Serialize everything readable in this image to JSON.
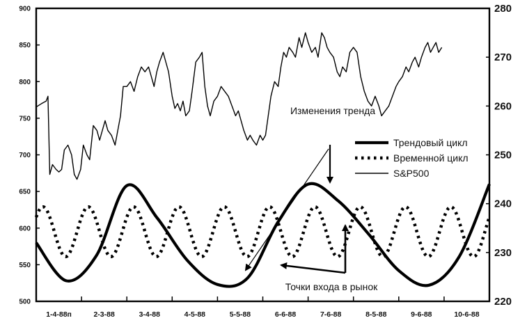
{
  "chart_data": {
    "type": "line",
    "x_labels": [
      "1-4-88п",
      "2-3-88",
      "3-4-88",
      "4-5-88",
      "5-5-88",
      "6-6-88",
      "7-6-88",
      "8-5-88",
      "9-6-88",
      "10-6-88"
    ],
    "left_axis": {
      "ticks": [
        "500",
        "550",
        "600",
        "650",
        "700",
        "750",
        "800",
        "850",
        "900"
      ],
      "ylim": [
        500,
        900
      ]
    },
    "right_axis": {
      "ticks": [
        "220",
        "230",
        "240",
        "250",
        "260",
        "270",
        "280"
      ],
      "ylim": [
        220,
        280
      ]
    },
    "legend": [
      {
        "label": "Трендовый цикл",
        "style": "thick-solid"
      },
      {
        "label": "Временной цикл",
        "style": "dotted"
      },
      {
        "label": "S&P500",
        "style": "thin-solid"
      }
    ],
    "annotations": {
      "trend_change": "Изменения тренда",
      "entry_points": "Точки входа в рынок"
    },
    "series": [
      {
        "name": "Трендовый цикл",
        "axis": "left",
        "sampled_per_month": [
          580,
          528,
          563,
          658,
          614,
          556,
          523,
          532,
          608,
          660,
          637,
          592,
          542,
          522,
          561,
          660
        ]
      },
      {
        "name": "Временной цикл",
        "axis": "left",
        "cycle_center": 595,
        "cycle_amplitude": 34,
        "cycle_length_months": 1.0
      },
      {
        "name": "S&P500",
        "axis": "right",
        "points": [
          [
            0.0,
            259.8
          ],
          [
            0.12,
            260.5
          ],
          [
            0.22,
            261
          ],
          [
            0.26,
            262
          ],
          [
            0.3,
            246
          ],
          [
            0.36,
            248
          ],
          [
            0.44,
            247
          ],
          [
            0.5,
            246.5
          ],
          [
            0.56,
            247
          ],
          [
            0.62,
            251
          ],
          [
            0.7,
            252
          ],
          [
            0.78,
            250
          ],
          [
            0.84,
            246
          ],
          [
            0.9,
            245
          ],
          [
            0.98,
            247
          ],
          [
            1.04,
            252
          ],
          [
            1.12,
            250
          ],
          [
            1.18,
            249
          ],
          [
            1.26,
            256
          ],
          [
            1.34,
            255
          ],
          [
            1.4,
            253
          ],
          [
            1.46,
            255
          ],
          [
            1.52,
            257
          ],
          [
            1.58,
            255
          ],
          [
            1.66,
            254
          ],
          [
            1.74,
            252
          ],
          [
            1.8,
            255
          ],
          [
            1.86,
            258
          ],
          [
            1.92,
            264
          ],
          [
            2.0,
            264
          ],
          [
            2.08,
            265
          ],
          [
            2.16,
            263
          ],
          [
            2.24,
            266
          ],
          [
            2.32,
            268
          ],
          [
            2.4,
            267
          ],
          [
            2.48,
            268
          ],
          [
            2.54,
            266
          ],
          [
            2.6,
            264
          ],
          [
            2.66,
            267
          ],
          [
            2.72,
            269
          ],
          [
            2.8,
            271
          ],
          [
            2.86,
            269
          ],
          [
            2.92,
            267
          ],
          [
            3.0,
            262
          ],
          [
            3.06,
            259.5
          ],
          [
            3.12,
            260.5
          ],
          [
            3.18,
            259
          ],
          [
            3.24,
            261
          ],
          [
            3.3,
            258
          ],
          [
            3.38,
            259
          ],
          [
            3.44,
            263
          ],
          [
            3.52,
            269
          ],
          [
            3.6,
            270
          ],
          [
            3.66,
            271
          ],
          [
            3.72,
            264
          ],
          [
            3.78,
            260
          ],
          [
            3.84,
            258
          ],
          [
            3.92,
            261
          ],
          [
            4.0,
            262
          ],
          [
            4.08,
            264
          ],
          [
            4.16,
            263
          ],
          [
            4.24,
            262
          ],
          [
            4.32,
            260
          ],
          [
            4.4,
            258
          ],
          [
            4.46,
            259
          ],
          [
            4.52,
            257
          ],
          [
            4.58,
            255
          ],
          [
            4.66,
            253
          ],
          [
            4.72,
            254
          ],
          [
            4.78,
            253
          ],
          [
            4.86,
            252
          ],
          [
            4.94,
            254
          ],
          [
            5.0,
            253
          ],
          [
            5.06,
            254
          ],
          [
            5.12,
            258
          ],
          [
            5.18,
            262
          ],
          [
            5.26,
            265
          ],
          [
            5.34,
            264
          ],
          [
            5.4,
            268
          ],
          [
            5.46,
            271
          ],
          [
            5.52,
            270
          ],
          [
            5.58,
            272
          ],
          [
            5.66,
            271
          ],
          [
            5.72,
            270
          ],
          [
            5.8,
            274
          ],
          [
            5.86,
            272
          ],
          [
            5.94,
            275
          ],
          [
            6.0,
            273
          ],
          [
            6.08,
            271
          ],
          [
            6.16,
            272
          ],
          [
            6.22,
            270
          ],
          [
            6.3,
            275
          ],
          [
            6.36,
            274
          ],
          [
            6.42,
            272
          ],
          [
            6.48,
            271
          ],
          [
            6.56,
            270
          ],
          [
            6.64,
            267
          ],
          [
            6.7,
            266
          ],
          [
            6.76,
            268
          ],
          [
            6.84,
            267
          ],
          [
            6.92,
            271
          ],
          [
            7.0,
            272
          ],
          [
            7.08,
            271
          ],
          [
            7.16,
            266
          ],
          [
            7.24,
            263
          ],
          [
            7.32,
            261
          ],
          [
            7.4,
            260
          ],
          [
            7.48,
            262
          ],
          [
            7.56,
            260
          ],
          [
            7.62,
            258
          ],
          [
            7.7,
            259
          ],
          [
            7.78,
            260
          ],
          [
            7.86,
            262
          ],
          [
            7.94,
            264
          ],
          [
            8.0,
            265
          ],
          [
            8.08,
            266
          ],
          [
            8.16,
            268
          ],
          [
            8.22,
            267
          ],
          [
            8.3,
            269
          ],
          [
            8.36,
            270
          ],
          [
            8.44,
            268
          ],
          [
            8.5,
            270
          ],
          [
            8.58,
            272
          ],
          [
            8.64,
            273
          ],
          [
            8.7,
            271
          ],
          [
            8.76,
            272
          ],
          [
            8.82,
            273
          ],
          [
            8.88,
            271
          ],
          [
            8.95,
            272
          ]
        ]
      }
    ]
  }
}
